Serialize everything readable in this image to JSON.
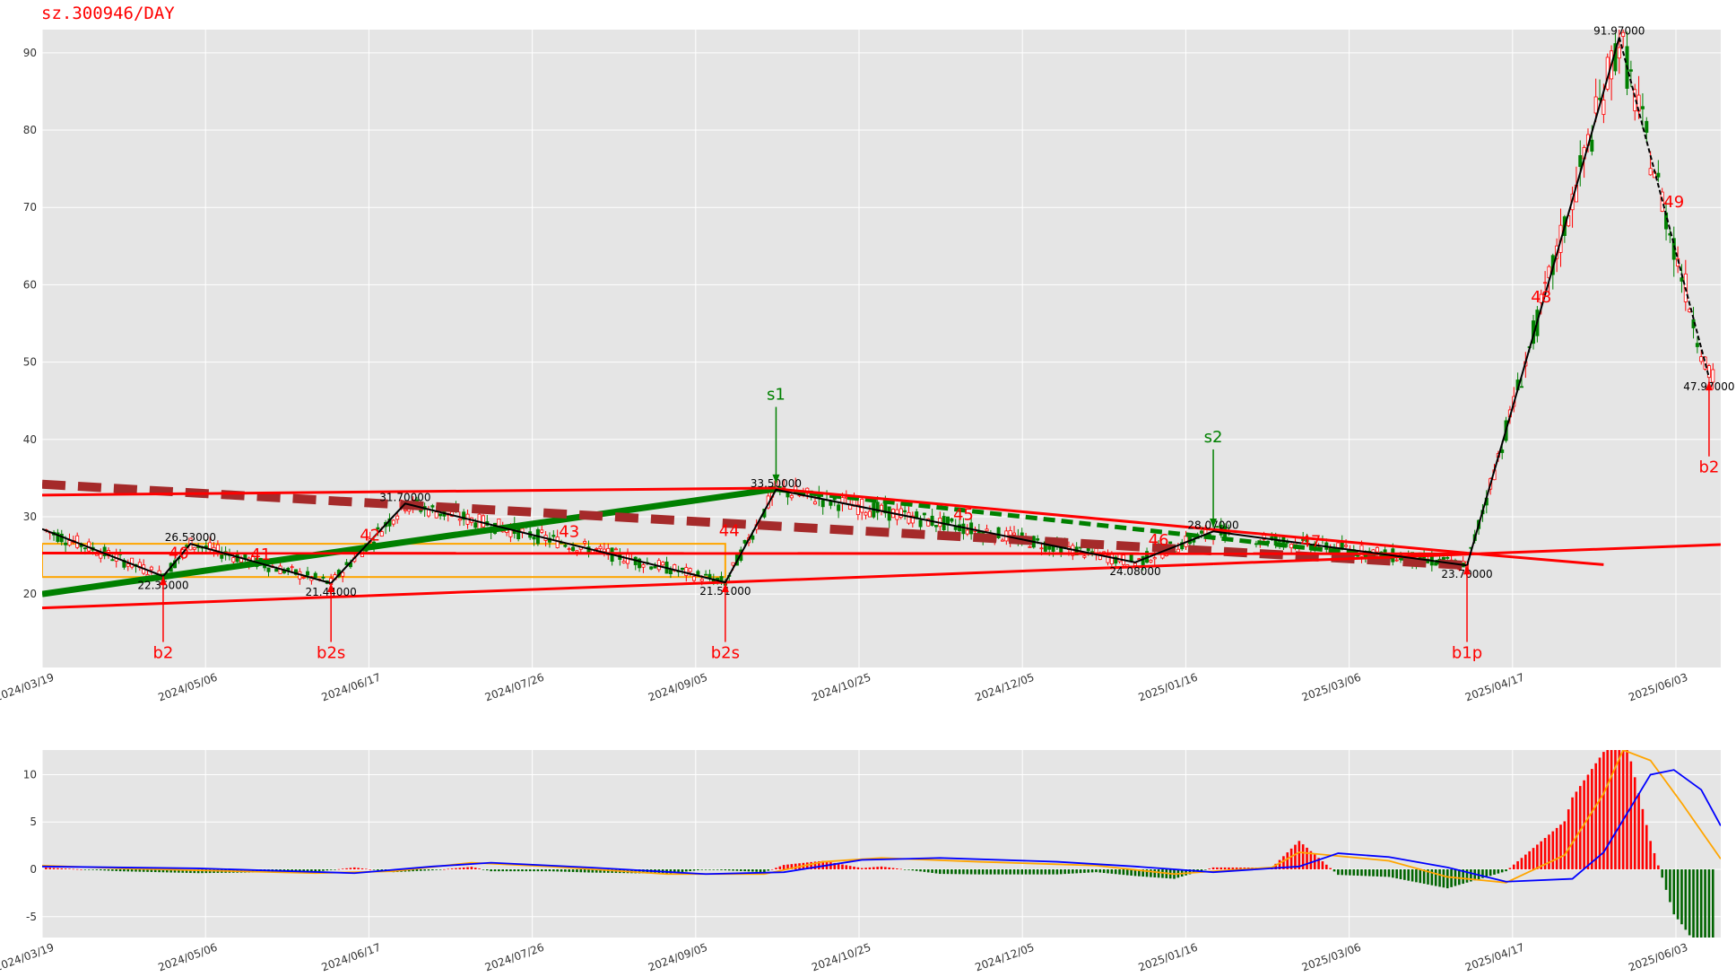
{
  "chart_data": {
    "type": "line",
    "title": "sz.300946/DAY",
    "x_ticks": [
      "2024/03/19",
      "2024/05/06",
      "2024/06/17",
      "2024/07/26",
      "2024/09/05",
      "2024/10/25",
      "2024/12/05",
      "2025/01/16",
      "2025/03/06",
      "2025/04/17",
      "2025/06/03"
    ],
    "x_range": [
      0,
      430
    ],
    "price_panel": {
      "ylim": [
        10.5,
        93
      ],
      "yticks": [
        20,
        30,
        40,
        50,
        60,
        70,
        80,
        90
      ],
      "grid": true,
      "pivot_line": [
        [
          0,
          28.4
        ],
        [
          31,
          22.3
        ],
        [
          38,
          26.5
        ],
        [
          74,
          21.4
        ],
        [
          93,
          31.7
        ],
        [
          175,
          21.5
        ],
        [
          188,
          33.5
        ],
        [
          280,
          24.1
        ],
        [
          300,
          28.1
        ],
        [
          365,
          23.7
        ],
        [
          404,
          92.0
        ],
        [
          427,
          48.0
        ]
      ],
      "pivot_labels": [
        {
          "x": 31,
          "y": 22.3,
          "text": "22.35000",
          "pos": "below"
        },
        {
          "x": 38,
          "y": 26.5,
          "text": "26.53000",
          "pos": "above"
        },
        {
          "x": 74,
          "y": 21.4,
          "text": "21.44000",
          "pos": "below"
        },
        {
          "x": 93,
          "y": 31.7,
          "text": "31.70000",
          "pos": "above"
        },
        {
          "x": 175,
          "y": 21.5,
          "text": "21.51000",
          "pos": "below"
        },
        {
          "x": 188,
          "y": 33.5,
          "text": "33.50000",
          "pos": "above"
        },
        {
          "x": 280,
          "y": 24.1,
          "text": "24.08000",
          "pos": "below"
        },
        {
          "x": 300,
          "y": 28.1,
          "text": "28.07000",
          "pos": "above"
        },
        {
          "x": 365,
          "y": 23.7,
          "text": "23.70000",
          "pos": "below"
        },
        {
          "x": 404,
          "y": 92.0,
          "text": "91.97000",
          "pos": "above"
        },
        {
          "x": 427,
          "y": 48.0,
          "text": "47.97000",
          "pos": "below"
        }
      ],
      "trend_lines": [
        {
          "color": "#008000",
          "width": 7,
          "dash": false,
          "points": [
            [
              0,
              20.0
            ],
            [
              188,
              33.6
            ]
          ]
        },
        {
          "color": "#008000",
          "width": 5,
          "dash": true,
          "points": [
            [
              188,
              33.5
            ],
            [
              365,
              23.7
            ]
          ]
        },
        {
          "color": "#a52a2a",
          "width": 10,
          "dash": true,
          "points": [
            [
              0,
              34.2
            ],
            [
              365,
              23.7
            ]
          ]
        },
        {
          "color": "#ff0000",
          "width": 3,
          "dash": false,
          "points": [
            [
              0,
              32.8
            ],
            [
              188,
              33.7
            ]
          ]
        },
        {
          "color": "#ff0000",
          "width": 3,
          "dash": false,
          "points": [
            [
              188,
              33.6
            ],
            [
              365,
              25.3
            ]
          ]
        },
        {
          "color": "#ff0000",
          "width": 3,
          "dash": false,
          "points": [
            [
              0,
              25.3
            ],
            [
              365,
              25.2
            ]
          ]
        },
        {
          "color": "#ff0000",
          "width": 3,
          "dash": false,
          "points": [
            [
              0,
              18.2
            ],
            [
              300,
              23.9
            ]
          ]
        },
        {
          "color": "#ff0000",
          "width": 3,
          "dash": false,
          "points": [
            [
              300,
              23.9
            ],
            [
              430,
              26.4
            ]
          ]
        },
        {
          "color": "#ff0000",
          "width": 3,
          "dash": false,
          "points": [
            [
              365,
              25.3
            ],
            [
              400,
              23.8
            ]
          ]
        },
        {
          "color": "#000000",
          "width": 2,
          "dash": true,
          "points": [
            [
              404,
              92.0
            ],
            [
              427,
              48.0
            ]
          ]
        }
      ],
      "hubs": [
        {
          "x0": 0,
          "x1": 175,
          "y0": 22.2,
          "y1": 26.5,
          "color": "#ffa500"
        }
      ],
      "segment_labels": [
        {
          "x": 35,
          "y": 24.6,
          "text": "40"
        },
        {
          "x": 56,
          "y": 24.4,
          "text": "41"
        },
        {
          "x": 84,
          "y": 26.9,
          "text": "42"
        },
        {
          "x": 135,
          "y": 27.4,
          "text": "43"
        },
        {
          "x": 176,
          "y": 27.5,
          "text": "44"
        },
        {
          "x": 236,
          "y": 29.6,
          "text": "45"
        },
        {
          "x": 286,
          "y": 26.3,
          "text": "46"
        },
        {
          "x": 325,
          "y": 26.1,
          "text": "47"
        },
        {
          "x": 384,
          "y": 57.7,
          "text": "48"
        },
        {
          "x": 418,
          "y": 70.0,
          "text": "49"
        }
      ],
      "signals": [
        {
          "x": 31,
          "text": "b2",
          "kind": "buy",
          "tip": 22.3,
          "tail": 13.8
        },
        {
          "x": 74,
          "text": "b2s",
          "kind": "buy",
          "tip": 21.4,
          "tail": 13.8
        },
        {
          "x": 175,
          "text": "b2s",
          "kind": "buy",
          "tip": 21.4,
          "tail": 13.8
        },
        {
          "x": 365,
          "text": "b1p",
          "kind": "buy",
          "tip": 23.7,
          "tail": 13.8
        },
        {
          "x": 427,
          "text": "b2",
          "kind": "buy",
          "tip": 47.5,
          "tail": 37.8
        },
        {
          "x": 188,
          "text": "s1",
          "kind": "sell",
          "tip": 34.3,
          "tail": 44.2
        },
        {
          "x": 300,
          "text": "s2",
          "kind": "sell",
          "tip": 28.6,
          "tail": 38.7
        }
      ]
    },
    "macd_panel": {
      "ylim": [
        -7.2,
        12.6
      ],
      "yticks": [
        -5,
        0,
        5,
        10
      ],
      "dif": [
        [
          0,
          0.4
        ],
        [
          20,
          0.1
        ],
        [
          40,
          -0.1
        ],
        [
          70,
          -0.4
        ],
        [
          90,
          -0.2
        ],
        [
          110,
          0.7
        ],
        [
          130,
          0.3
        ],
        [
          160,
          -0.5
        ],
        [
          185,
          -0.5
        ],
        [
          200,
          0.8
        ],
        [
          215,
          1.2
        ],
        [
          240,
          0.8
        ],
        [
          270,
          0.4
        ],
        [
          290,
          -0.5
        ],
        [
          300,
          -0.2
        ],
        [
          315,
          0.2
        ],
        [
          322,
          1.8
        ],
        [
          345,
          0.9
        ],
        [
          360,
          -0.8
        ],
        [
          375,
          -1.4
        ],
        [
          390,
          1.5
        ],
        [
          400,
          8.0
        ],
        [
          405,
          12.6
        ],
        [
          412,
          11.5
        ],
        [
          420,
          7.0
        ],
        [
          430,
          1.1
        ]
      ],
      "dea": [
        [
          0,
          0.3
        ],
        [
          40,
          0.1
        ],
        [
          80,
          -0.4
        ],
        [
          100,
          0.3
        ],
        [
          115,
          0.7
        ],
        [
          140,
          0.2
        ],
        [
          170,
          -0.5
        ],
        [
          190,
          -0.3
        ],
        [
          210,
          1.0
        ],
        [
          230,
          1.2
        ],
        [
          260,
          0.8
        ],
        [
          280,
          0.3
        ],
        [
          300,
          -0.3
        ],
        [
          322,
          0.3
        ],
        [
          332,
          1.7
        ],
        [
          345,
          1.3
        ],
        [
          360,
          0.2
        ],
        [
          375,
          -1.3
        ],
        [
          392,
          -1.0
        ],
        [
          400,
          1.8
        ],
        [
          412,
          10.0
        ],
        [
          418,
          10.5
        ],
        [
          425,
          8.4
        ],
        [
          430,
          4.6
        ]
      ]
    }
  }
}
